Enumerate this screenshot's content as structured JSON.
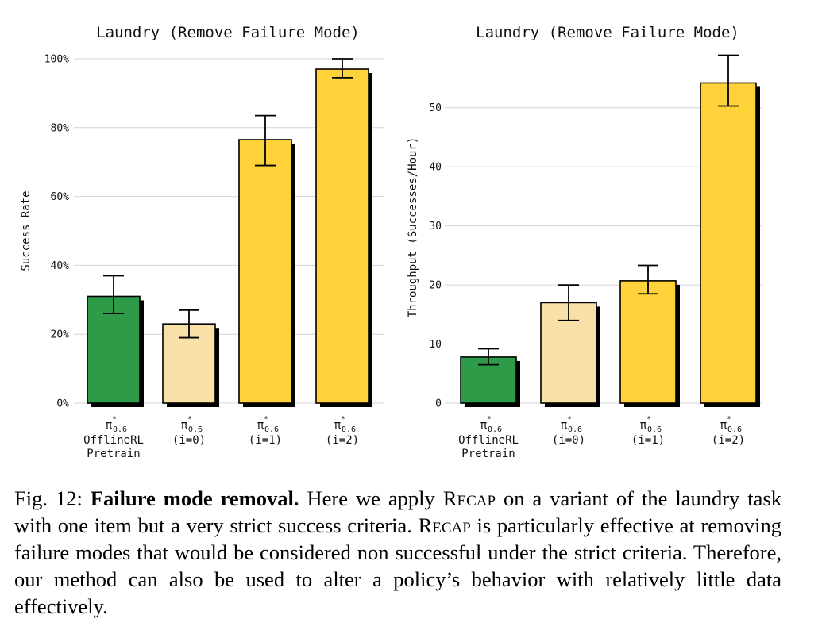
{
  "chart_data": [
    {
      "type": "bar",
      "title": "Laundry (Remove Failure Mode)",
      "xlabel": "",
      "ylabel": "Success Rate",
      "ylim": [
        0,
        100
      ],
      "yticks": [
        "0%",
        "20%",
        "40%",
        "60%",
        "80%",
        "100%"
      ],
      "ytick_values": [
        0,
        20,
        40,
        60,
        80,
        100
      ],
      "grid": "horizontal",
      "categories": [
        {
          "symbol": "π",
          "sup": "*",
          "sub": "0.6",
          "lines": [
            "OfflineRL",
            "Pretrain"
          ]
        },
        {
          "symbol": "π",
          "sup": "*",
          "sub": "0.6",
          "lines": [
            "(i=0)"
          ]
        },
        {
          "symbol": "π",
          "sup": "*",
          "sub": "0.6",
          "lines": [
            "(i=1)"
          ]
        },
        {
          "symbol": "π",
          "sup": "*",
          "sub": "0.6",
          "lines": [
            "(i=2)"
          ]
        }
      ],
      "values": [
        31.0,
        23.0,
        76.5,
        97.0
      ],
      "error_low": [
        26.0,
        19.0,
        69.0,
        94.5
      ],
      "error_high": [
        37.0,
        27.0,
        83.5,
        100.0
      ],
      "colors": [
        "#2e9b48",
        "#f8e1a6",
        "#ffd23a",
        "#ffd23a"
      ]
    },
    {
      "type": "bar",
      "title": "Laundry (Remove Failure Mode)",
      "xlabel": "",
      "ylabel": "Throughput (Successes/Hour)",
      "ylim": [
        0,
        59.5
      ],
      "yticks": [
        "0",
        "10",
        "20",
        "30",
        "40",
        "50"
      ],
      "ytick_values": [
        0,
        10,
        20,
        30,
        40,
        50
      ],
      "grid": "horizontal",
      "categories": [
        {
          "symbol": "π",
          "sup": "*",
          "sub": "0.6",
          "lines": [
            "OfflineRL",
            "Pretrain"
          ]
        },
        {
          "symbol": "π",
          "sup": "*",
          "sub": "0.6",
          "lines": [
            "(i=0)"
          ]
        },
        {
          "symbol": "π",
          "sup": "*",
          "sub": "0.6",
          "lines": [
            "(i=1)"
          ]
        },
        {
          "symbol": "π",
          "sup": "*",
          "sub": "0.6",
          "lines": [
            "(i=2)"
          ]
        }
      ],
      "values": [
        7.8,
        17.0,
        20.7,
        54.2
      ],
      "error_low": [
        6.5,
        14.0,
        18.5,
        50.3
      ],
      "error_high": [
        9.2,
        20.0,
        23.3,
        58.9
      ],
      "colors": [
        "#2e9b48",
        "#f8e1a6",
        "#ffd23a",
        "#ffd23a"
      ]
    }
  ],
  "caption": {
    "fig_label": "Fig. 12:",
    "bold_title": "Failure mode removal.",
    "seg1": " Here we apply ",
    "recap1": "Recap",
    "seg2": " on a variant of the laundry task with one item but a very strict success criteria. ",
    "recap2": "Recap",
    "seg3": " is particularly effective at removing failure modes that would be considered non successful under the strict criteria. Therefore, our method can also be used to alter a policy’s behavior with relatively little data effectively."
  }
}
